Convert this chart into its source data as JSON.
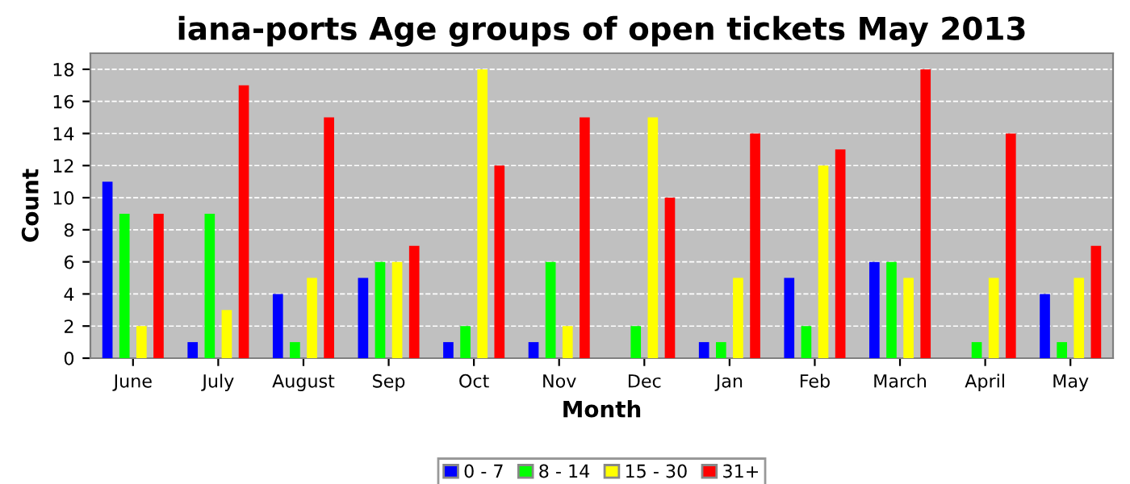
{
  "chart_data": {
    "type": "bar",
    "title": "iana-ports Age groups of open tickets May 2013",
    "xlabel": "Month",
    "ylabel": "Count",
    "categories": [
      "June",
      "July",
      "August",
      "Sep",
      "Oct",
      "Nov",
      "Dec",
      "Jan",
      "Feb",
      "March",
      "April",
      "May"
    ],
    "series": [
      {
        "name": "0 - 7",
        "color": "#0000ff",
        "values": [
          11,
          1,
          4,
          5,
          1,
          1,
          0,
          1,
          5,
          6,
          0,
          4
        ]
      },
      {
        "name": "8 - 14",
        "color": "#00ff00",
        "values": [
          9,
          9,
          1,
          6,
          2,
          6,
          2,
          1,
          2,
          6,
          1,
          1
        ]
      },
      {
        "name": "15 - 30",
        "color": "#ffff00",
        "values": [
          2,
          3,
          5,
          6,
          18,
          2,
          15,
          5,
          12,
          5,
          5,
          5
        ]
      },
      {
        "name": "31+",
        "color": "#ff0000",
        "values": [
          9,
          17,
          15,
          7,
          12,
          15,
          10,
          14,
          13,
          18,
          14,
          7
        ]
      }
    ],
    "ylim": [
      0,
      19
    ],
    "yticks": [
      0,
      2,
      4,
      6,
      8,
      10,
      12,
      14,
      16,
      18
    ],
    "grid": "y",
    "legend": "bottom"
  }
}
